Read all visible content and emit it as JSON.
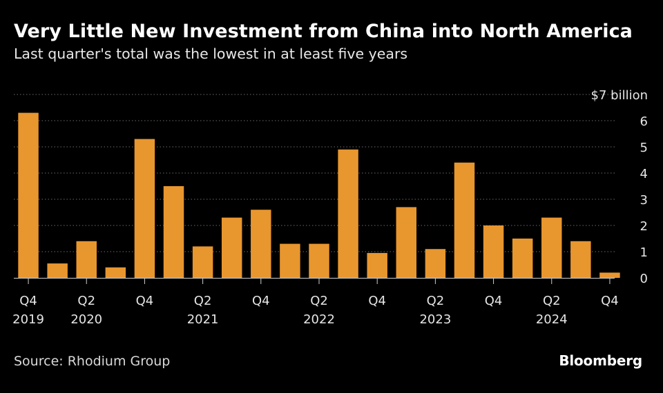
{
  "header": {
    "title": "Very Little New Investment from China into North America",
    "subtitle": "Last quarter's total was the lowest in at least five years"
  },
  "footer": {
    "source": "Source: Rhodium Group",
    "brand": "Bloomberg"
  },
  "colors": {
    "background": "#000000",
    "bar": "#e8962e",
    "grid": "#6b6b6b",
    "text": "#e6e6e6"
  },
  "chart_data": {
    "type": "bar",
    "title": "Very Little New Investment from China into North America",
    "subtitle": "Last quarter's total was the lowest in at least five years",
    "categories": [
      "Q4 2019",
      "Q1 2020",
      "Q2 2020",
      "Q3 2020",
      "Q4 2020",
      "Q1 2021",
      "Q2 2021",
      "Q3 2021",
      "Q4 2021",
      "Q1 2022",
      "Q2 2022",
      "Q3 2022",
      "Q4 2022",
      "Q1 2023",
      "Q2 2023",
      "Q3 2023",
      "Q4 2023",
      "Q1 2024",
      "Q2 2024",
      "Q3 2024",
      "Q4 2024"
    ],
    "values": [
      6.3,
      0.55,
      1.4,
      0.4,
      5.3,
      3.5,
      1.2,
      2.3,
      2.6,
      1.3,
      1.3,
      4.9,
      0.95,
      2.7,
      1.1,
      4.4,
      2.0,
      1.5,
      2.3,
      1.4,
      0.2
    ],
    "ylim": [
      0,
      7
    ],
    "y_ticks": [
      "0",
      "1",
      "2",
      "3",
      "4",
      "5",
      "6",
      "$7 billion"
    ],
    "y_tick_values": [
      0,
      1,
      2,
      3,
      4,
      5,
      6,
      7
    ],
    "y_axis_side": "right",
    "x_ticks": [
      {
        "index": 0,
        "quarter": "Q4",
        "year": "2019"
      },
      {
        "index": 2,
        "quarter": "Q2",
        "year": "2020"
      },
      {
        "index": 4,
        "quarter": "Q4",
        "year": ""
      },
      {
        "index": 6,
        "quarter": "Q2",
        "year": "2021"
      },
      {
        "index": 8,
        "quarter": "Q4",
        "year": ""
      },
      {
        "index": 10,
        "quarter": "Q2",
        "year": "2022"
      },
      {
        "index": 12,
        "quarter": "Q4",
        "year": ""
      },
      {
        "index": 14,
        "quarter": "Q2",
        "year": "2023"
      },
      {
        "index": 16,
        "quarter": "Q4",
        "year": ""
      },
      {
        "index": 18,
        "quarter": "Q2",
        "year": "2024"
      },
      {
        "index": 20,
        "quarter": "Q4",
        "year": ""
      }
    ],
    "grid": true,
    "grid_style": "dotted"
  }
}
